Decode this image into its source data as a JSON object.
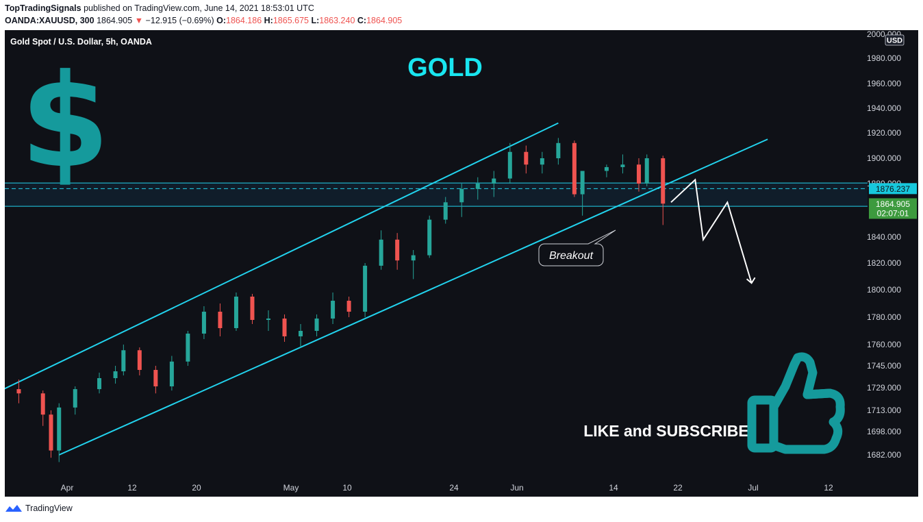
{
  "header": {
    "author": "TopTradingSignals",
    "published_text": "published on TradingView.com, June 14, 2021 18:53:01 UTC",
    "symbol": "OANDA:XAUUSD, 300",
    "last": "1864.905",
    "change": "−12.915 (−0.69%)",
    "o_label": "O:",
    "o_value": "1864.186",
    "h_label": "H:",
    "h_value": "1865.675",
    "l_label": "L:",
    "l_value": "1863.240",
    "c_label": "C:",
    "c_value": "1864.905"
  },
  "chart_data": {
    "type": "candlestick",
    "title": "Gold Spot / U.S. Dollar, 5h, OANDA",
    "currency": "USD",
    "annotations": {
      "big_title": "GOLD",
      "breakout_label": "Breakout",
      "cta": "LIKE and SUBSCRIBE",
      "dollar": "$"
    },
    "y_ticks": [
      "2000.000",
      "1980.000",
      "1960.000",
      "1940.000",
      "1920.000",
      "1900.000",
      "1880.000",
      "1840.000",
      "1820.000",
      "1800.000",
      "1780.000",
      "1760.000",
      "1745.000",
      "1729.000",
      "1713.000",
      "1698.000",
      "1682.000"
    ],
    "x_ticks": [
      "Apr",
      "12",
      "20",
      "May",
      "10",
      "24",
      "Jun",
      "14",
      "22",
      "Jul",
      "12"
    ],
    "price_labels": {
      "level": "1876.237",
      "last": "1864.905",
      "countdown": "02:07:01"
    },
    "resistance_zone": [
      1863.0,
      1880.5
    ],
    "key_level": 1876.237,
    "colors": {
      "up": "#26a69a",
      "down": "#ef5350",
      "channel": "#22d3ee",
      "title": "#19e6f0",
      "icon": "#159a9c",
      "level_label_bg": "#17c8dd",
      "last_label_bg": "#3d9a3e",
      "background": "#0f1117"
    },
    "candles_approx": [
      {
        "date": "2021-03-22",
        "o": 1738,
        "h": 1742,
        "l": 1722,
        "c": 1733
      },
      {
        "date": "2021-03-24",
        "o": 1733,
        "h": 1737,
        "l": 1725,
        "c": 1728
      },
      {
        "date": "2021-03-26",
        "o": 1728,
        "h": 1735,
        "l": 1718,
        "c": 1725
      },
      {
        "date": "2021-03-29",
        "o": 1725,
        "h": 1727,
        "l": 1702,
        "c": 1710
      },
      {
        "date": "2021-03-30",
        "o": 1710,
        "h": 1713,
        "l": 1680,
        "c": 1685
      },
      {
        "date": "2021-03-31",
        "o": 1685,
        "h": 1718,
        "l": 1677,
        "c": 1715
      },
      {
        "date": "2021-04-02",
        "o": 1715,
        "h": 1730,
        "l": 1710,
        "c": 1728
      },
      {
        "date": "2021-04-05",
        "o": 1728,
        "h": 1740,
        "l": 1725,
        "c": 1736
      },
      {
        "date": "2021-04-07",
        "o": 1736,
        "h": 1745,
        "l": 1732,
        "c": 1741
      },
      {
        "date": "2021-04-08",
        "o": 1741,
        "h": 1760,
        "l": 1738,
        "c": 1756
      },
      {
        "date": "2021-04-10",
        "o": 1756,
        "h": 1758,
        "l": 1738,
        "c": 1742
      },
      {
        "date": "2021-04-12",
        "o": 1742,
        "h": 1745,
        "l": 1725,
        "c": 1730
      },
      {
        "date": "2021-04-14",
        "o": 1730,
        "h": 1752,
        "l": 1727,
        "c": 1748
      },
      {
        "date": "2021-04-16",
        "o": 1748,
        "h": 1770,
        "l": 1745,
        "c": 1768
      },
      {
        "date": "2021-04-18",
        "o": 1768,
        "h": 1788,
        "l": 1764,
        "c": 1784
      },
      {
        "date": "2021-04-20",
        "o": 1784,
        "h": 1790,
        "l": 1766,
        "c": 1772
      },
      {
        "date": "2021-04-22",
        "o": 1772,
        "h": 1798,
        "l": 1770,
        "c": 1795
      },
      {
        "date": "2021-04-24",
        "o": 1795,
        "h": 1797,
        "l": 1775,
        "c": 1778
      },
      {
        "date": "2021-04-26",
        "o": 1778,
        "h": 1785,
        "l": 1770,
        "c": 1779
      },
      {
        "date": "2021-04-28",
        "o": 1779,
        "h": 1782,
        "l": 1762,
        "c": 1766
      },
      {
        "date": "2021-04-30",
        "o": 1766,
        "h": 1775,
        "l": 1758,
        "c": 1770
      },
      {
        "date": "2021-05-02",
        "o": 1770,
        "h": 1782,
        "l": 1766,
        "c": 1779
      },
      {
        "date": "2021-05-04",
        "o": 1779,
        "h": 1798,
        "l": 1775,
        "c": 1792
      },
      {
        "date": "2021-05-06",
        "o": 1792,
        "h": 1795,
        "l": 1780,
        "c": 1784
      },
      {
        "date": "2021-05-08",
        "o": 1784,
        "h": 1820,
        "l": 1780,
        "c": 1818
      },
      {
        "date": "2021-05-10",
        "o": 1818,
        "h": 1845,
        "l": 1815,
        "c": 1838
      },
      {
        "date": "2021-05-12",
        "o": 1838,
        "h": 1843,
        "l": 1815,
        "c": 1822
      },
      {
        "date": "2021-05-14",
        "o": 1822,
        "h": 1830,
        "l": 1808,
        "c": 1826
      },
      {
        "date": "2021-05-16",
        "o": 1826,
        "h": 1856,
        "l": 1824,
        "c": 1853
      },
      {
        "date": "2021-05-18",
        "o": 1853,
        "h": 1870,
        "l": 1850,
        "c": 1866
      },
      {
        "date": "2021-05-20",
        "o": 1866,
        "h": 1880,
        "l": 1855,
        "c": 1876
      },
      {
        "date": "2021-05-22",
        "o": 1876,
        "h": 1885,
        "l": 1868,
        "c": 1880
      },
      {
        "date": "2021-05-24",
        "o": 1880,
        "h": 1890,
        "l": 1870,
        "c": 1884
      },
      {
        "date": "2021-05-26",
        "o": 1884,
        "h": 1912,
        "l": 1880,
        "c": 1905
      },
      {
        "date": "2021-05-28",
        "o": 1905,
        "h": 1910,
        "l": 1888,
        "c": 1895
      },
      {
        "date": "2021-05-30",
        "o": 1895,
        "h": 1905,
        "l": 1888,
        "c": 1900
      },
      {
        "date": "2021-06-01",
        "o": 1900,
        "h": 1916,
        "l": 1895,
        "c": 1912
      },
      {
        "date": "2021-06-03",
        "o": 1912,
        "h": 1914,
        "l": 1870,
        "c": 1872
      },
      {
        "date": "2021-06-04",
        "o": 1872,
        "h": 1880,
        "l": 1856,
        "c": 1890
      },
      {
        "date": "2021-06-07",
        "o": 1890,
        "h": 1895,
        "l": 1885,
        "c": 1893
      },
      {
        "date": "2021-06-09",
        "o": 1893,
        "h": 1903,
        "l": 1888,
        "c": 1895
      },
      {
        "date": "2021-06-11",
        "o": 1895,
        "h": 1900,
        "l": 1874,
        "c": 1880
      },
      {
        "date": "2021-06-12",
        "o": 1880,
        "h": 1903,
        "l": 1878,
        "c": 1900
      },
      {
        "date": "2021-06-14",
        "o": 1900,
        "h": 1902,
        "l": 1849,
        "c": 1865
      }
    ],
    "channel_upper": [
      {
        "date": "2021-03-24",
        "price": 1728
      },
      {
        "date": "2021-06-01",
        "price": 1928
      }
    ],
    "channel_lower": [
      {
        "date": "2021-03-31",
        "price": 1682
      },
      {
        "date": "2021-06-27",
        "price": 1915
      }
    ],
    "projection_path": [
      {
        "date": "2021-06-15",
        "price": 1866
      },
      {
        "date": "2021-06-18",
        "price": 1883
      },
      {
        "date": "2021-06-19",
        "price": 1838
      },
      {
        "date": "2021-06-22",
        "price": 1866
      },
      {
        "date": "2021-06-25",
        "price": 1805
      }
    ]
  },
  "footer": {
    "brand": "TradingView"
  }
}
